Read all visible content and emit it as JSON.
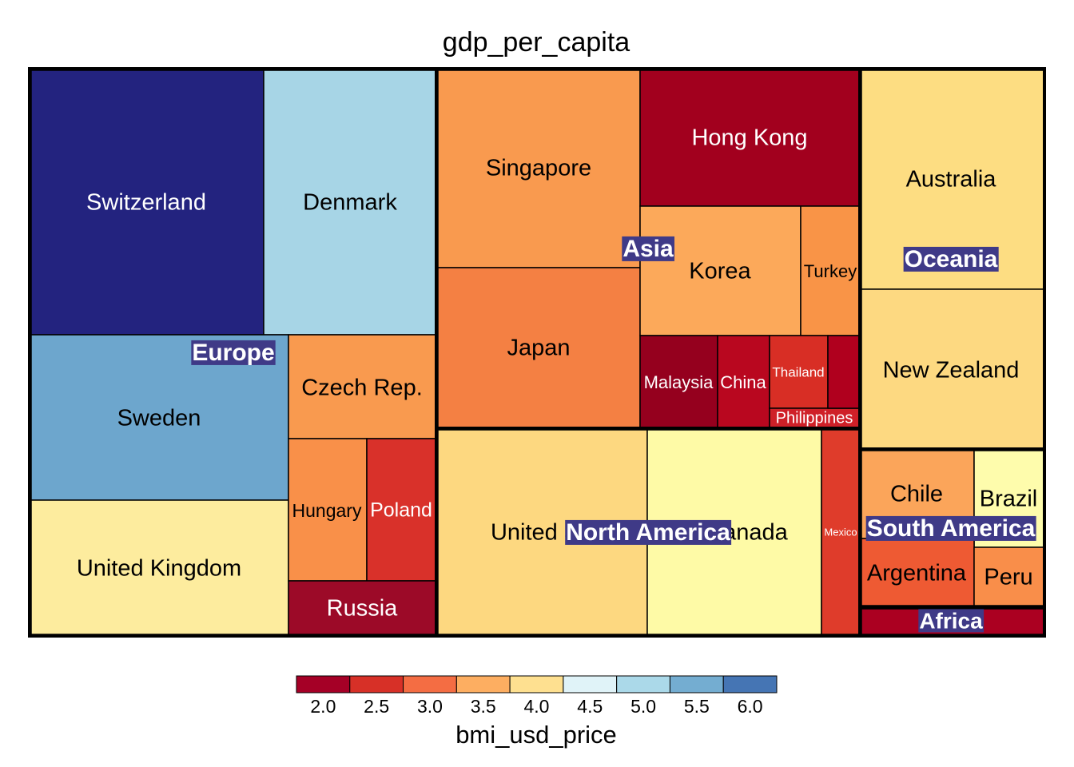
{
  "chart_data": {
    "type": "treemap",
    "title": "gdp_per_capita",
    "size_variable": "gdp_per_capita",
    "color_variable": "bmi_usd_price",
    "legend": {
      "title": "bmi_usd_price",
      "placement": "bottom",
      "breaks": [
        1.75,
        2.25,
        2.75,
        3.25,
        3.75,
        4.25,
        4.75,
        5.25,
        5.75,
        6.25
      ],
      "tick_labels": [
        "2.0",
        "2.5",
        "3.0",
        "3.5",
        "4.0",
        "4.5",
        "5.0",
        "5.5",
        "6.0"
      ],
      "colors": [
        "#a50026",
        "#d73027",
        "#f46d43",
        "#fdae61",
        "#fee090",
        "#e0f3f8",
        "#abd9e9",
        "#74add1",
        "#4575b4",
        "#313695"
      ]
    },
    "groups": [
      {
        "name": "Europe",
        "countries": [
          {
            "name": "Switzerland",
            "bmi_usd_price": 6.1,
            "fill": "#23237f",
            "text_color": "#ffffff"
          },
          {
            "name": "Denmark",
            "bmi_usd_price": 4.9,
            "fill": "#a7d5e6",
            "text_color": "#000000"
          },
          {
            "name": "Sweden",
            "bmi_usd_price": 5.2,
            "fill": "#6da6cd",
            "text_color": "#000000"
          },
          {
            "name": "Czech Rep.",
            "bmi_usd_price": 3.3,
            "fill": "#f99a4f",
            "text_color": "#000000"
          },
          {
            "name": "United Kingdom",
            "bmi_usd_price": 4.0,
            "fill": "#fdec9e",
            "text_color": "#000000"
          },
          {
            "name": "Hungary",
            "bmi_usd_price": 3.1,
            "fill": "#f99049",
            "text_color": "#000000"
          },
          {
            "name": "Poland",
            "bmi_usd_price": 2.5,
            "fill": "#d9312a",
            "text_color": "#ffffff"
          },
          {
            "name": "Russia",
            "bmi_usd_price": 1.9,
            "fill": "#9c0a28",
            "text_color": "#ffffff"
          }
        ]
      },
      {
        "name": "Asia",
        "countries": [
          {
            "name": "Singapore",
            "bmi_usd_price": 3.3,
            "fill": "#f99a4f",
            "text_color": "#000000"
          },
          {
            "name": "Hong Kong",
            "bmi_usd_price": 2.0,
            "fill": "#a2001e",
            "text_color": "#ffffff"
          },
          {
            "name": "Japan",
            "bmi_usd_price": 3.0,
            "fill": "#f48043",
            "text_color": "#000000"
          },
          {
            "name": "Korea",
            "bmi_usd_price": 3.6,
            "fill": "#fca95a",
            "text_color": "#000000"
          },
          {
            "name": "Turkey",
            "bmi_usd_price": 3.3,
            "fill": "#f99447",
            "text_color": "#000000"
          },
          {
            "name": "Malaysia",
            "bmi_usd_price": 1.9,
            "fill": "#95001e",
            "text_color": "#ffffff"
          },
          {
            "name": "China",
            "bmi_usd_price": 2.2,
            "fill": "#b9071f",
            "text_color": "#ffffff"
          },
          {
            "name": "Thailand",
            "bmi_usd_price": 2.5,
            "fill": "#d82e25",
            "text_color": "#ffffff"
          },
          {
            "name": "Philippines",
            "bmi_usd_price": 2.4,
            "fill": "#cf2028",
            "text_color": "#ffffff"
          },
          {
            "name": "",
            "bmi_usd_price": 2.1,
            "fill": "#b0001e",
            "text_color": "#ffffff"
          }
        ]
      },
      {
        "name": "North America",
        "countries": [
          {
            "name": "United States",
            "bmi_usd_price": 3.9,
            "fill": "#fdd880",
            "text_color": "#000000"
          },
          {
            "name": "Canada",
            "bmi_usd_price": 4.2,
            "fill": "#fefaa6",
            "text_color": "#000000"
          },
          {
            "name": "Mexico",
            "bmi_usd_price": 2.6,
            "fill": "#df3c2b",
            "text_color": "#ffffff"
          }
        ]
      },
      {
        "name": "Oceania",
        "countries": [
          {
            "name": "Australia",
            "bmi_usd_price": 3.9,
            "fill": "#fddd82",
            "text_color": "#000000"
          },
          {
            "name": "New Zealand",
            "bmi_usd_price": 3.9,
            "fill": "#fdd981",
            "text_color": "#000000"
          }
        ]
      },
      {
        "name": "South America",
        "countries": [
          {
            "name": "Chile",
            "bmi_usd_price": 3.5,
            "fill": "#fba55a",
            "text_color": "#000000"
          },
          {
            "name": "Brazil",
            "bmi_usd_price": 4.2,
            "fill": "#fefcac",
            "text_color": "#000000"
          },
          {
            "name": "Argentina",
            "bmi_usd_price": 2.7,
            "fill": "#ee5a33",
            "text_color": "#000000"
          },
          {
            "name": "Peru",
            "bmi_usd_price": 3.2,
            "fill": "#f98e4a",
            "text_color": "#000000"
          }
        ]
      },
      {
        "name": "Africa",
        "countries": [
          {
            "name": "",
            "bmi_usd_price": 2.1,
            "fill": "#ab0021",
            "text_color": "#ffffff"
          }
        ]
      }
    ]
  }
}
